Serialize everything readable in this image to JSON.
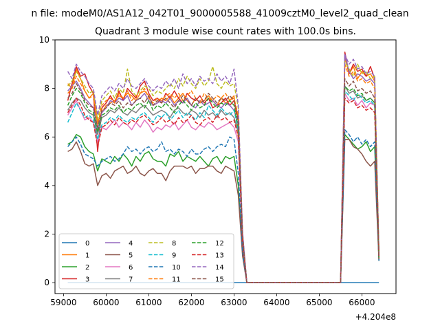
{
  "figure_title": "n file: modeM0/AS1A12_042T01_9000005588_41009cztM0_level2_quad_clean",
  "chart_data": {
    "type": "line",
    "title": "Quadrant 3 module wise count rates with 100.0s bins.",
    "xlabel": "",
    "ylabel": "",
    "x_offset_label": "+4.204e8",
    "xlim": [
      58800,
      66800
    ],
    "ylim": [
      -0.45,
      10
    ],
    "xticks": [
      59000,
      60000,
      61000,
      62000,
      63000,
      64000,
      65000,
      66000
    ],
    "yticks": [
      0,
      2,
      4,
      6,
      8,
      10
    ],
    "grid": false,
    "legend_position": "lower-left",
    "legend_columns": 4,
    "x_range": {
      "start": 59100,
      "step": 100,
      "count": 74
    },
    "series": [
      {
        "name": "0",
        "color": "#1f77b4",
        "dash": "solid",
        "values": [
          0,
          0,
          0,
          0,
          0,
          0,
          0,
          0,
          0,
          0,
          0,
          0,
          0,
          0,
          0,
          0,
          0,
          0,
          0,
          0,
          0,
          0,
          0,
          0,
          0,
          0,
          0,
          0,
          0,
          0,
          0,
          0,
          0,
          0,
          0,
          0,
          0,
          0,
          0,
          0,
          0,
          0,
          0,
          0,
          0,
          0,
          0,
          0,
          0,
          0,
          0,
          0,
          0,
          0,
          0,
          0,
          0,
          0,
          0,
          0,
          0,
          0,
          0,
          0,
          0,
          0,
          0,
          0,
          0,
          0,
          0,
          0,
          0,
          0
        ]
      },
      {
        "name": "1",
        "color": "#ff7f0e",
        "dash": "solid",
        "values": [
          8.2,
          8.0,
          8.8,
          8.4,
          7.9,
          7.6,
          7.8,
          6.6,
          7.0,
          7.3,
          7.4,
          7.5,
          7.7,
          7.6,
          7.8,
          7.7,
          7.5,
          7.8,
          7.9,
          7.7,
          7.3,
          7.4,
          7.6,
          7.5,
          7.7,
          7.4,
          7.6,
          7.8,
          7.5,
          7.3,
          7.6,
          7.4,
          7.5,
          7.7,
          7.5,
          7.3,
          7.6,
          7.4,
          7.5,
          7.7,
          6.0,
          1.8,
          0,
          0,
          0,
          0,
          0,
          0,
          0,
          0,
          0,
          0,
          0,
          0,
          0,
          0,
          0,
          0,
          0,
          0,
          0,
          0,
          0,
          0,
          0,
          9.3,
          8.6,
          8.9,
          8.4,
          8.7,
          8.5,
          8.6,
          8.3,
          1.1
        ]
      },
      {
        "name": "2",
        "color": "#2ca02c",
        "dash": "solid",
        "values": [
          5.7,
          5.8,
          6.1,
          6.0,
          5.6,
          5.4,
          5.3,
          4.6,
          5.1,
          5.0,
          4.9,
          5.2,
          5.0,
          5.3,
          5.1,
          4.8,
          5.2,
          5.0,
          5.3,
          5.4,
          5.1,
          5.0,
          5.0,
          4.8,
          5.3,
          5.2,
          5.4,
          5.0,
          5.2,
          5.1,
          5.0,
          5.2,
          5.0,
          4.8,
          5.1,
          5.2,
          4.9,
          5.2,
          5.1,
          5.2,
          4.0,
          1.2,
          0,
          0,
          0,
          0,
          0,
          0,
          0,
          0,
          0,
          0,
          0,
          0,
          0,
          0,
          0,
          0,
          0,
          0,
          0,
          0,
          0,
          0,
          0,
          6.1,
          5.9,
          5.7,
          5.5,
          5.6,
          5.8,
          5.4,
          5.6,
          0.9
        ]
      },
      {
        "name": "3",
        "color": "#d62728",
        "dash": "solid",
        "values": [
          7.5,
          8.2,
          8.9,
          8.5,
          8.6,
          8.1,
          7.8,
          5.4,
          7.2,
          7.4,
          7.7,
          7.4,
          7.9,
          7.5,
          8.0,
          7.8,
          7.6,
          8.1,
          8.3,
          7.8,
          7.5,
          7.6,
          7.4,
          7.8,
          7.6,
          7.9,
          7.6,
          7.4,
          7.8,
          7.6,
          7.5,
          7.7,
          7.4,
          7.6,
          7.2,
          7.3,
          7.4,
          7.6,
          7.3,
          7.5,
          6.8,
          2.0,
          0,
          0,
          0,
          0,
          0,
          0,
          0,
          0,
          0,
          0,
          0,
          0,
          0,
          0,
          0,
          0,
          0,
          0,
          0,
          0,
          0,
          0,
          0,
          9.5,
          8.6,
          9.0,
          8.7,
          8.8,
          8.5,
          8.9,
          8.4,
          1.2
        ]
      },
      {
        "name": "4",
        "color": "#9467bd",
        "dash": "solid",
        "values": [
          7.9,
          8.1,
          8.3,
          8.0,
          7.6,
          7.4,
          7.2,
          6.3,
          7.0,
          7.2,
          7.5,
          7.4,
          7.6,
          7.5,
          7.7,
          7.3,
          7.5,
          7.6,
          7.8,
          7.5,
          7.3,
          7.4,
          7.5,
          7.4,
          7.6,
          7.3,
          7.5,
          7.4,
          7.6,
          7.3,
          7.2,
          7.5,
          7.3,
          7.4,
          7.5,
          7.3,
          7.2,
          7.4,
          7.3,
          7.1,
          6.5,
          1.9,
          0,
          0,
          0,
          0,
          0,
          0,
          0,
          0,
          0,
          0,
          0,
          0,
          0,
          0,
          0,
          0,
          0,
          0,
          0,
          0,
          0,
          0,
          0,
          9.4,
          8.7,
          8.4,
          8.6,
          8.5,
          8.3,
          8.4,
          8.2,
          1.1
        ]
      },
      {
        "name": "5",
        "color": "#8c564b",
        "dash": "solid",
        "values": [
          5.4,
          5.5,
          5.8,
          5.4,
          4.9,
          4.8,
          4.9,
          4.0,
          4.4,
          4.5,
          4.3,
          4.6,
          4.7,
          4.8,
          4.5,
          4.6,
          4.8,
          4.5,
          4.4,
          4.6,
          4.7,
          4.5,
          4.5,
          4.2,
          4.6,
          4.8,
          4.8,
          4.8,
          4.7,
          4.8,
          4.5,
          4.7,
          4.7,
          4.8,
          4.8,
          4.6,
          4.5,
          4.8,
          4.7,
          4.6,
          3.6,
          1.1,
          0,
          0,
          0,
          0,
          0,
          0,
          0,
          0,
          0,
          0,
          0,
          0,
          0,
          0,
          0,
          0,
          0,
          0,
          0,
          0,
          0,
          0,
          0,
          5.9,
          5.9,
          5.6,
          5.5,
          5.3,
          5.0,
          4.8,
          5.0,
          0.9
        ]
      },
      {
        "name": "6",
        "color": "#e377c2",
        "dash": "solid",
        "values": [
          6.9,
          7.2,
          7.5,
          7.1,
          6.7,
          6.8,
          6.6,
          5.8,
          6.4,
          6.3,
          6.5,
          6.7,
          6.4,
          6.6,
          6.5,
          6.3,
          6.6,
          6.4,
          6.7,
          6.5,
          6.2,
          6.4,
          6.3,
          6.5,
          6.4,
          6.6,
          6.3,
          6.5,
          6.7,
          6.4,
          6.3,
          6.5,
          6.4,
          6.6,
          6.5,
          6.3,
          6.4,
          6.5,
          6.6,
          6.4,
          5.8,
          1.7,
          0,
          0,
          0,
          0,
          0,
          0,
          0,
          0,
          0,
          0,
          0,
          0,
          0,
          0,
          0,
          0,
          0,
          0,
          0,
          0,
          0,
          0,
          0,
          7.8,
          7.5,
          7.6,
          7.3,
          7.5,
          7.2,
          7.4,
          7.3,
          1.0
        ]
      },
      {
        "name": "7",
        "color": "#7f7f7f",
        "dash": "solid",
        "values": [
          7.1,
          7.4,
          7.6,
          7.5,
          7.2,
          7.0,
          6.9,
          6.1,
          6.8,
          6.9,
          7.1,
          7.0,
          7.2,
          7.0,
          6.9,
          7.1,
          7.0,
          7.2,
          7.3,
          7.1,
          6.9,
          7.0,
          7.1,
          7.0,
          6.8,
          7.1,
          7.2,
          7.0,
          6.9,
          7.1,
          7.0,
          6.8,
          7.1,
          6.9,
          7.0,
          6.8,
          7.1,
          6.9,
          7.0,
          6.8,
          6.2,
          1.8,
          0,
          0,
          0,
          0,
          0,
          0,
          0,
          0,
          0,
          0,
          0,
          0,
          0,
          0,
          0,
          0,
          0,
          0,
          0,
          0,
          0,
          0,
          0,
          8.1,
          7.8,
          7.9,
          7.6,
          7.7,
          7.5,
          7.6,
          7.4,
          1.0
        ]
      },
      {
        "name": "8",
        "color": "#bcbd22",
        "dash": "dashed",
        "values": [
          8.1,
          8.3,
          8.7,
          8.4,
          8.1,
          7.8,
          7.9,
          6.7,
          7.5,
          7.7,
          7.9,
          7.6,
          8.0,
          7.8,
          8.8,
          7.9,
          7.7,
          7.9,
          8.1,
          8.0,
          7.7,
          7.9,
          7.8,
          8.0,
          8.2,
          8.0,
          8.4,
          8.1,
          8.5,
          8.2,
          8.0,
          8.4,
          8.1,
          8.3,
          8.9,
          8.2,
          8.0,
          8.3,
          8.1,
          8.2,
          7.2,
          2.0,
          0,
          0,
          0,
          0,
          0,
          0,
          0,
          0,
          0,
          0,
          0,
          0,
          0,
          0,
          0,
          0,
          0,
          0,
          0,
          0,
          0,
          0,
          0,
          9.1,
          8.8,
          8.5,
          9.0,
          8.6,
          8.7,
          8.4,
          8.5,
          1.2
        ]
      },
      {
        "name": "9",
        "color": "#17becf",
        "dash": "dashed",
        "values": [
          6.6,
          7.0,
          7.4,
          7.1,
          6.8,
          6.9,
          6.7,
          5.9,
          6.5,
          6.6,
          6.8,
          6.7,
          6.9,
          6.7,
          6.6,
          6.8,
          6.7,
          6.9,
          7.0,
          6.8,
          6.6,
          6.9,
          6.8,
          7.0,
          6.7,
          6.9,
          7.1,
          6.8,
          7.0,
          6.9,
          6.7,
          7.0,
          6.8,
          7.3,
          7.1,
          6.9,
          7.2,
          7.0,
          6.9,
          7.1,
          6.3,
          1.8,
          0,
          0,
          0,
          0,
          0,
          0,
          0,
          0,
          0,
          0,
          0,
          0,
          0,
          0,
          0,
          0,
          0,
          0,
          0,
          0,
          0,
          0,
          0,
          7.9,
          7.7,
          7.5,
          7.8,
          7.6,
          7.4,
          7.5,
          7.3,
          1.0
        ]
      },
      {
        "name": "10",
        "color": "#1f77b4",
        "dash": "dashed",
        "values": [
          5.6,
          5.8,
          6.0,
          5.7,
          5.3,
          5.2,
          5.1,
          4.8,
          5.0,
          5.1,
          5.2,
          5.0,
          5.1,
          5.3,
          5.6,
          5.4,
          5.5,
          5.3,
          5.5,
          5.6,
          5.4,
          5.5,
          5.8,
          5.4,
          5.5,
          5.3,
          5.5,
          5.4,
          5.2,
          5.5,
          5.3,
          5.3,
          5.5,
          5.6,
          5.4,
          5.6,
          5.7,
          5.6,
          6.0,
          5.9,
          4.5,
          1.3,
          0,
          0,
          0,
          0,
          0,
          0,
          0,
          0,
          0,
          0,
          0,
          0,
          0,
          0,
          0,
          0,
          0,
          0,
          0,
          0,
          0,
          0,
          0,
          6.3,
          6.1,
          5.8,
          6.0,
          5.7,
          5.9,
          5.6,
          5.8,
          0.9
        ]
      },
      {
        "name": "11",
        "color": "#ff7f0e",
        "dash": "dashed",
        "values": [
          7.8,
          8.0,
          8.5,
          8.2,
          7.9,
          7.6,
          7.7,
          6.5,
          7.3,
          7.5,
          7.6,
          7.4,
          7.8,
          7.6,
          7.9,
          7.5,
          7.7,
          7.8,
          8.0,
          7.6,
          7.4,
          7.6,
          7.5,
          7.7,
          7.8,
          7.6,
          7.8,
          7.5,
          7.7,
          7.9,
          7.6,
          7.4,
          7.8,
          7.6,
          7.5,
          7.7,
          7.6,
          7.8,
          7.5,
          7.6,
          6.9,
          1.9,
          0,
          0,
          0,
          0,
          0,
          0,
          0,
          0,
          0,
          0,
          0,
          0,
          0,
          0,
          0,
          0,
          0,
          0,
          0,
          0,
          0,
          0,
          0,
          9.0,
          8.5,
          8.7,
          8.3,
          8.4,
          8.2,
          8.3,
          8.0,
          1.1
        ]
      },
      {
        "name": "12",
        "color": "#2ca02c",
        "dash": "dashed",
        "values": [
          7.3,
          7.7,
          8.0,
          7.8,
          7.4,
          7.1,
          7.0,
          6.2,
          6.9,
          7.0,
          7.2,
          7.1,
          7.3,
          7.0,
          7.2,
          7.1,
          7.3,
          7.4,
          7.2,
          7.5,
          7.1,
          7.3,
          7.2,
          7.4,
          7.2,
          7.0,
          7.3,
          7.5,
          7.3,
          7.1,
          7.4,
          7.2,
          7.3,
          7.6,
          7.4,
          7.2,
          7.4,
          7.3,
          7.5,
          7.3,
          6.4,
          1.8,
          0,
          0,
          0,
          0,
          0,
          0,
          0,
          0,
          0,
          0,
          0,
          0,
          0,
          0,
          0,
          0,
          0,
          0,
          0,
          0,
          0,
          0,
          0,
          8.1,
          7.9,
          8.0,
          7.7,
          7.8,
          7.5,
          7.6,
          7.4,
          1.0
        ]
      },
      {
        "name": "13",
        "color": "#d62728",
        "dash": "dashed",
        "values": [
          7.0,
          7.3,
          7.6,
          7.3,
          6.9,
          6.7,
          6.6,
          5.6,
          6.4,
          6.5,
          6.7,
          6.5,
          6.8,
          6.6,
          6.5,
          6.7,
          6.6,
          6.8,
          6.9,
          6.7,
          6.5,
          6.6,
          6.8,
          6.6,
          6.7,
          6.5,
          6.8,
          6.6,
          6.7,
          6.9,
          6.6,
          6.5,
          6.7,
          6.8,
          6.6,
          6.9,
          6.7,
          6.8,
          6.6,
          6.7,
          6.0,
          1.7,
          0,
          0,
          0,
          0,
          0,
          0,
          0,
          0,
          0,
          0,
          0,
          0,
          0,
          0,
          0,
          0,
          0,
          0,
          0,
          0,
          0,
          0,
          0,
          7.6,
          7.4,
          7.5,
          7.2,
          7.3,
          7.1,
          7.2,
          7.0,
          1.0
        ]
      },
      {
        "name": "14",
        "color": "#9467bd",
        "dash": "dashed",
        "values": [
          8.7,
          8.4,
          9.0,
          8.7,
          8.5,
          8.2,
          8.0,
          6.9,
          7.7,
          7.9,
          8.1,
          7.9,
          8.2,
          8.0,
          8.4,
          8.1,
          8.0,
          8.2,
          8.4,
          8.1,
          7.9,
          8.1,
          8.0,
          8.3,
          8.1,
          8.4,
          8.0,
          8.6,
          8.2,
          8.4,
          8.1,
          8.5,
          8.3,
          8.4,
          8.2,
          8.6,
          8.3,
          8.5,
          8.2,
          8.8,
          7.3,
          2.1,
          0,
          0,
          0,
          0,
          0,
          0,
          0,
          0,
          0,
          0,
          0,
          0,
          0,
          0,
          0,
          0,
          0,
          0,
          0,
          0,
          0,
          0,
          0,
          9.4,
          9.0,
          9.2,
          8.8,
          8.9,
          8.6,
          8.7,
          8.5,
          1.2
        ]
      },
      {
        "name": "15",
        "color": "#8c564b",
        "dash": "dashed",
        "values": [
          7.6,
          7.8,
          8.2,
          7.9,
          7.5,
          7.3,
          7.2,
          6.4,
          7.1,
          7.2,
          7.4,
          7.3,
          7.5,
          7.2,
          7.4,
          7.3,
          7.5,
          7.6,
          7.4,
          7.7,
          7.3,
          7.5,
          7.4,
          7.6,
          7.4,
          7.2,
          7.5,
          7.7,
          7.5,
          7.3,
          7.6,
          7.4,
          7.5,
          7.8,
          7.6,
          7.4,
          7.6,
          7.5,
          7.7,
          7.5,
          6.6,
          1.9,
          0,
          0,
          0,
          0,
          0,
          0,
          0,
          0,
          0,
          0,
          0,
          0,
          0,
          0,
          0,
          0,
          0,
          0,
          0,
          0,
          0,
          0,
          0,
          8.4,
          8.1,
          8.3,
          7.9,
          8.0,
          7.8,
          7.9,
          7.6,
          1.1
        ]
      }
    ]
  }
}
